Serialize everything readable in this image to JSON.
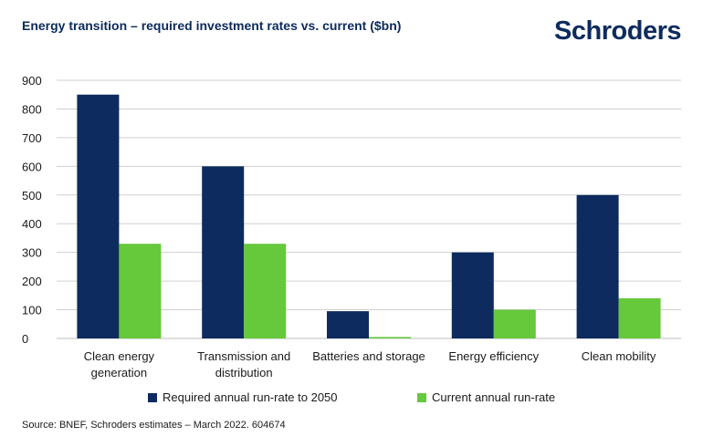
{
  "title": "Energy transition – required investment rates vs. current ($bn)",
  "logo_text": "Schroders",
  "source": "Source: BNEF, Schroders estimates – March 2022. 604674",
  "colors": {
    "series1": "#0d2b5e",
    "series2": "#66c83b",
    "grid": "#d0d0d0"
  },
  "chart_data": {
    "type": "bar",
    "categories": [
      [
        "Clean energy",
        "generation"
      ],
      [
        "Transmission and",
        "distribution"
      ],
      [
        "Batteries and storage"
      ],
      [
        "Energy efficiency"
      ],
      [
        "Clean mobility"
      ]
    ],
    "series": [
      {
        "name": "Required annual run-rate to 2050",
        "values": [
          850,
          600,
          95,
          300,
          500
        ]
      },
      {
        "name": "Current annual run-rate",
        "values": [
          330,
          330,
          5,
          100,
          140
        ]
      }
    ],
    "yticks": [
      0,
      100,
      200,
      300,
      400,
      500,
      600,
      700,
      800,
      900
    ],
    "ylim": [
      0,
      900
    ],
    "grid": true,
    "legend_position": "bottom"
  }
}
